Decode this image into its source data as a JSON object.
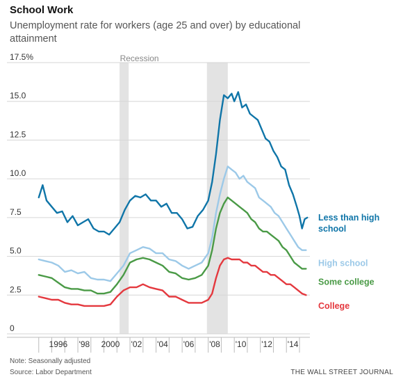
{
  "header": {
    "title": "School Work",
    "subtitle": "Unemployment rate for workers (age 25 and over) by educational attainment"
  },
  "footer": {
    "note": "Note: Seasonally adjusted",
    "source": "Source: Labor Department",
    "brand": "THE WALL STREET JOURNAL"
  },
  "chart_data": {
    "type": "line",
    "title": "School Work",
    "subtitle": "Unemployment rate for workers (age 25 and over) by educational attainment",
    "xlabel": "",
    "ylabel": "",
    "xlim": [
      1994.8,
      2015.8
    ],
    "ylim": [
      0,
      17.5
    ],
    "grid": "horizontal",
    "y_ticks": [
      {
        "value": 0,
        "label": "0"
      },
      {
        "value": 2.5,
        "label": "2.5"
      },
      {
        "value": 5.0,
        "label": "5.0"
      },
      {
        "value": 7.5,
        "label": "7.5"
      },
      {
        "value": 10.0,
        "label": "10.0"
      },
      {
        "value": 12.5,
        "label": "12.5"
      },
      {
        "value": 15.0,
        "label": "15.0"
      },
      {
        "value": 17.5,
        "label": "17.5%"
      }
    ],
    "x_ticks": [
      {
        "value": 1996,
        "label": "1996"
      },
      {
        "value": 1998,
        "label": "'98"
      },
      {
        "value": 2000,
        "label": "2000"
      },
      {
        "value": 2002,
        "label": "'02"
      },
      {
        "value": 2004,
        "label": "'04"
      },
      {
        "value": 2006,
        "label": "'06"
      },
      {
        "value": 2008,
        "label": "'08"
      },
      {
        "value": 2010,
        "label": "'10"
      },
      {
        "value": 2012,
        "label": "'12"
      },
      {
        "value": 2014,
        "label": "'14"
      }
    ],
    "recessions": [
      {
        "start": 2001.2,
        "end": 2001.9
      },
      {
        "start": 2007.9,
        "end": 2009.5
      }
    ],
    "recession_label": "Recession",
    "series": [
      {
        "name": "Less than high school",
        "label_lines": [
          "Less than high",
          "school"
        ],
        "color": "#0f75a8",
        "x": [
          1995.0,
          1995.3,
          1995.6,
          1996.0,
          1996.4,
          1996.8,
          1997.2,
          1997.6,
          1998.0,
          1998.4,
          1998.8,
          1999.2,
          1999.6,
          2000.0,
          2000.4,
          2000.8,
          2001.2,
          2001.6,
          2002.0,
          2002.4,
          2002.8,
          2003.2,
          2003.6,
          2004.0,
          2004.4,
          2004.8,
          2005.2,
          2005.6,
          2006.0,
          2006.4,
          2006.8,
          2007.2,
          2007.6,
          2008.0,
          2008.3,
          2008.6,
          2008.9,
          2009.2,
          2009.5,
          2009.8,
          2010.0,
          2010.3,
          2010.6,
          2010.9,
          2011.2,
          2011.5,
          2011.8,
          2012.1,
          2012.4,
          2012.7,
          2013.0,
          2013.3,
          2013.6,
          2013.9,
          2014.2,
          2014.5,
          2014.8,
          2015.0,
          2015.2,
          2015.4,
          2015.6
        ],
        "y": [
          8.8,
          9.6,
          8.6,
          8.2,
          7.8,
          7.9,
          7.2,
          7.6,
          7.0,
          7.2,
          7.4,
          6.8,
          6.6,
          6.6,
          6.4,
          6.8,
          7.2,
          8.0,
          8.6,
          8.9,
          8.8,
          9.0,
          8.6,
          8.6,
          8.2,
          8.4,
          7.8,
          7.8,
          7.4,
          6.8,
          6.9,
          7.6,
          8.0,
          8.6,
          9.8,
          11.6,
          13.8,
          15.4,
          15.2,
          15.5,
          15.0,
          15.6,
          14.6,
          14.8,
          14.2,
          14.0,
          13.8,
          13.2,
          12.6,
          12.4,
          11.8,
          11.4,
          10.8,
          10.6,
          9.6,
          9.0,
          8.2,
          7.6,
          6.8,
          7.4,
          7.5
        ]
      },
      {
        "name": "High school",
        "label_lines": [
          "High school"
        ],
        "color": "#9cc9e8",
        "x": [
          1995.0,
          1995.5,
          1996.0,
          1996.5,
          1997.0,
          1997.5,
          1998.0,
          1998.5,
          1999.0,
          1999.5,
          2000.0,
          2000.5,
          2001.0,
          2001.5,
          2002.0,
          2002.5,
          2003.0,
          2003.5,
          2004.0,
          2004.5,
          2005.0,
          2005.5,
          2006.0,
          2006.5,
          2007.0,
          2007.5,
          2008.0,
          2008.3,
          2008.6,
          2008.9,
          2009.2,
          2009.5,
          2009.8,
          2010.1,
          2010.4,
          2010.7,
          2011.0,
          2011.3,
          2011.6,
          2011.9,
          2012.2,
          2012.5,
          2012.8,
          2013.1,
          2013.4,
          2013.7,
          2014.0,
          2014.3,
          2014.6,
          2014.9,
          2015.2,
          2015.5
        ],
        "y": [
          4.8,
          4.7,
          4.6,
          4.4,
          4.0,
          4.1,
          3.9,
          4.0,
          3.6,
          3.5,
          3.5,
          3.4,
          3.9,
          4.4,
          5.2,
          5.4,
          5.6,
          5.5,
          5.2,
          5.2,
          4.8,
          4.7,
          4.4,
          4.2,
          4.4,
          4.6,
          5.2,
          6.2,
          7.8,
          9.0,
          10.0,
          10.8,
          10.6,
          10.4,
          10.0,
          10.2,
          9.8,
          9.6,
          9.4,
          8.8,
          8.6,
          8.4,
          8.2,
          7.8,
          7.6,
          7.2,
          6.8,
          6.4,
          6.0,
          5.6,
          5.4,
          5.4
        ]
      },
      {
        "name": "Some college",
        "label_lines": [
          "Some college"
        ],
        "color": "#4a9a46",
        "x": [
          1995.0,
          1995.5,
          1996.0,
          1996.5,
          1997.0,
          1997.5,
          1998.0,
          1998.5,
          1999.0,
          1999.5,
          2000.0,
          2000.5,
          2001.0,
          2001.5,
          2002.0,
          2002.5,
          2003.0,
          2003.5,
          2004.0,
          2004.5,
          2005.0,
          2005.5,
          2006.0,
          2006.5,
          2007.0,
          2007.5,
          2008.0,
          2008.3,
          2008.6,
          2008.9,
          2009.2,
          2009.5,
          2009.8,
          2010.1,
          2010.4,
          2010.7,
          2011.0,
          2011.3,
          2011.6,
          2011.9,
          2012.2,
          2012.5,
          2012.8,
          2013.1,
          2013.4,
          2013.7,
          2014.0,
          2014.3,
          2014.6,
          2014.9,
          2015.2,
          2015.5
        ],
        "y": [
          3.8,
          3.7,
          3.6,
          3.3,
          3.0,
          2.9,
          2.9,
          2.8,
          2.8,
          2.6,
          2.6,
          2.7,
          3.2,
          3.8,
          4.6,
          4.8,
          4.9,
          4.8,
          4.6,
          4.4,
          4.0,
          3.9,
          3.6,
          3.5,
          3.6,
          3.8,
          4.4,
          5.4,
          6.8,
          7.8,
          8.4,
          8.8,
          8.6,
          8.4,
          8.2,
          8.0,
          7.8,
          7.4,
          7.2,
          6.8,
          6.6,
          6.6,
          6.4,
          6.2,
          6.0,
          5.6,
          5.4,
          5.0,
          4.6,
          4.4,
          4.2,
          4.2
        ]
      },
      {
        "name": "College",
        "label_lines": [
          "College"
        ],
        "color": "#e4383e",
        "x": [
          1995.0,
          1995.5,
          1996.0,
          1996.5,
          1997.0,
          1997.5,
          1998.0,
          1998.5,
          1999.0,
          1999.5,
          2000.0,
          2000.5,
          2001.0,
          2001.5,
          2002.0,
          2002.5,
          2003.0,
          2003.5,
          2004.0,
          2004.5,
          2005.0,
          2005.5,
          2006.0,
          2006.5,
          2007.0,
          2007.5,
          2008.0,
          2008.3,
          2008.6,
          2008.9,
          2009.2,
          2009.5,
          2009.8,
          2010.1,
          2010.4,
          2010.7,
          2011.0,
          2011.3,
          2011.6,
          2011.9,
          2012.2,
          2012.5,
          2012.8,
          2013.1,
          2013.4,
          2013.7,
          2014.0,
          2014.3,
          2014.6,
          2014.9,
          2015.2,
          2015.5
        ],
        "y": [
          2.4,
          2.3,
          2.2,
          2.2,
          2.0,
          1.9,
          1.9,
          1.8,
          1.8,
          1.8,
          1.8,
          1.9,
          2.4,
          2.8,
          3.0,
          3.0,
          3.2,
          3.0,
          2.9,
          2.8,
          2.4,
          2.4,
          2.2,
          2.0,
          2.0,
          2.0,
          2.2,
          2.6,
          3.6,
          4.4,
          4.8,
          4.9,
          4.8,
          4.8,
          4.8,
          4.6,
          4.6,
          4.4,
          4.4,
          4.2,
          4.0,
          4.0,
          3.8,
          3.8,
          3.6,
          3.4,
          3.2,
          3.2,
          3.0,
          2.8,
          2.6,
          2.5
        ]
      }
    ]
  }
}
